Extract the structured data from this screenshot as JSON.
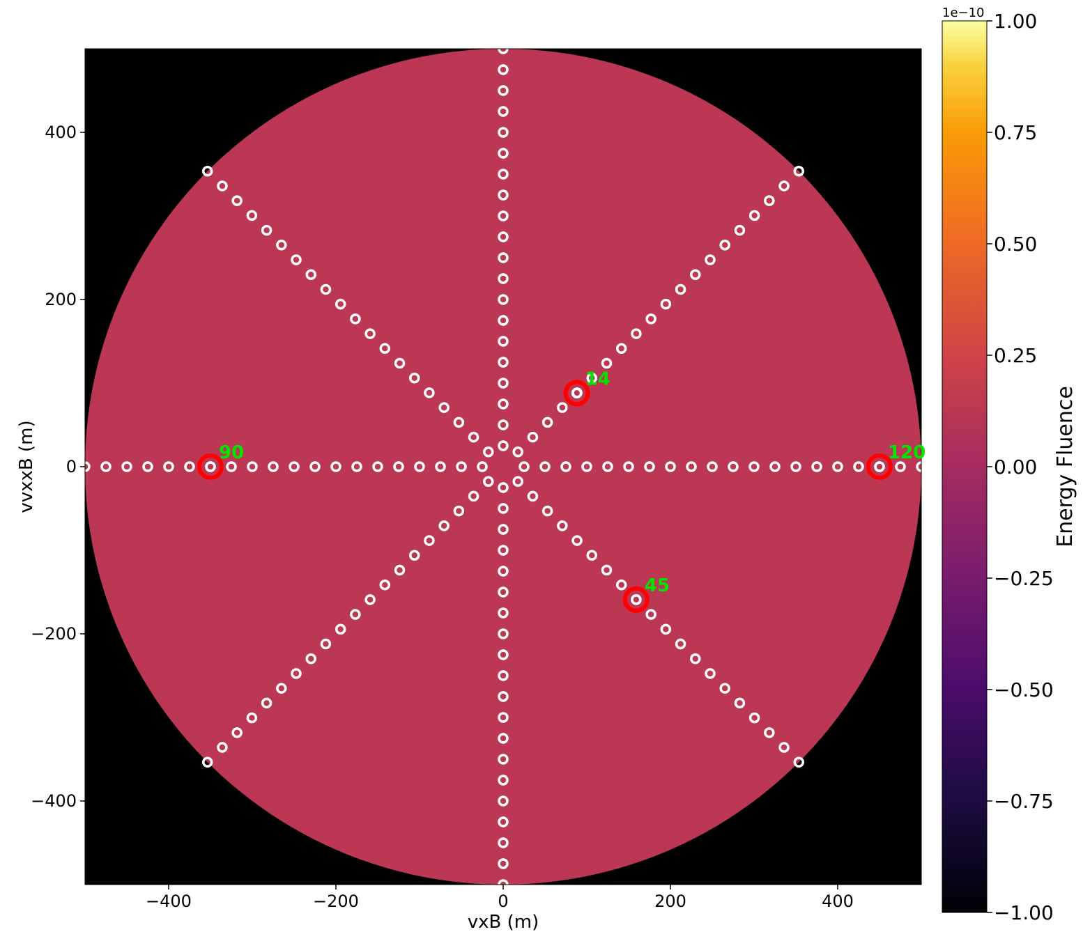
{
  "chart_data": {
    "type": "heatmap",
    "xlabel": "vxB (m)",
    "ylabel": "vvxxB (m)",
    "xlim": [
      -500,
      500
    ],
    "ylim": [
      -500,
      500
    ],
    "x_ticks": [
      -400,
      -200,
      0,
      200,
      400
    ],
    "y_ticks": [
      -400,
      -200,
      0,
      200,
      400
    ],
    "x_tick_labels": [
      "−400",
      "−200",
      "0",
      "200",
      "400"
    ],
    "y_tick_labels": [
      "−400",
      "−200",
      "0",
      "200",
      "400"
    ],
    "background_color": "#000000",
    "footprint_radius": 500,
    "footprint_value": 0.0,
    "footprint_color": "#bb3754",
    "colorbar": {
      "label": "Energy Fluence",
      "offset_text": "1e−10",
      "colormap": "inferno",
      "vmin": -1.0,
      "vmax": 1.0,
      "ticks": [
        -1.0,
        -0.75,
        -0.5,
        -0.25,
        0.0,
        0.25,
        0.5,
        0.75,
        1.0
      ],
      "tick_labels": [
        "−1.00",
        "−0.75",
        "−0.50",
        "−0.25",
        "0.00",
        "0.25",
        "0.50",
        "0.75",
        "1.00"
      ]
    },
    "antenna_arms": [
      {
        "angle_deg": 0,
        "count": 20,
        "spacing": 25,
        "start": 25
      },
      {
        "angle_deg": 180,
        "count": 25,
        "spacing": 25,
        "start": 25
      },
      {
        "angle_deg": 90,
        "count": 20,
        "spacing": 25,
        "start": 25
      },
      {
        "angle_deg": 270,
        "count": 20,
        "spacing": 25,
        "start": 25
      },
      {
        "angle_deg": 45,
        "count": 20,
        "spacing": 25,
        "start": 25
      },
      {
        "angle_deg": 135,
        "count": 20,
        "spacing": 25,
        "start": 25
      },
      {
        "angle_deg": 225,
        "count": 20,
        "spacing": 25,
        "start": 25
      },
      {
        "angle_deg": 315,
        "count": 20,
        "spacing": 25,
        "start": 25
      }
    ],
    "highlighted_antennas": [
      {
        "label": "14",
        "x": 88,
        "y": 88
      },
      {
        "label": "90",
        "x": -350,
        "y": 0
      },
      {
        "label": "120",
        "x": 450,
        "y": 0
      },
      {
        "label": "45",
        "x": 159,
        "y": -159
      }
    ],
    "marker_color": "#ffffff",
    "highlight_color": "#ff0000",
    "annotation_color": "#00e600"
  }
}
